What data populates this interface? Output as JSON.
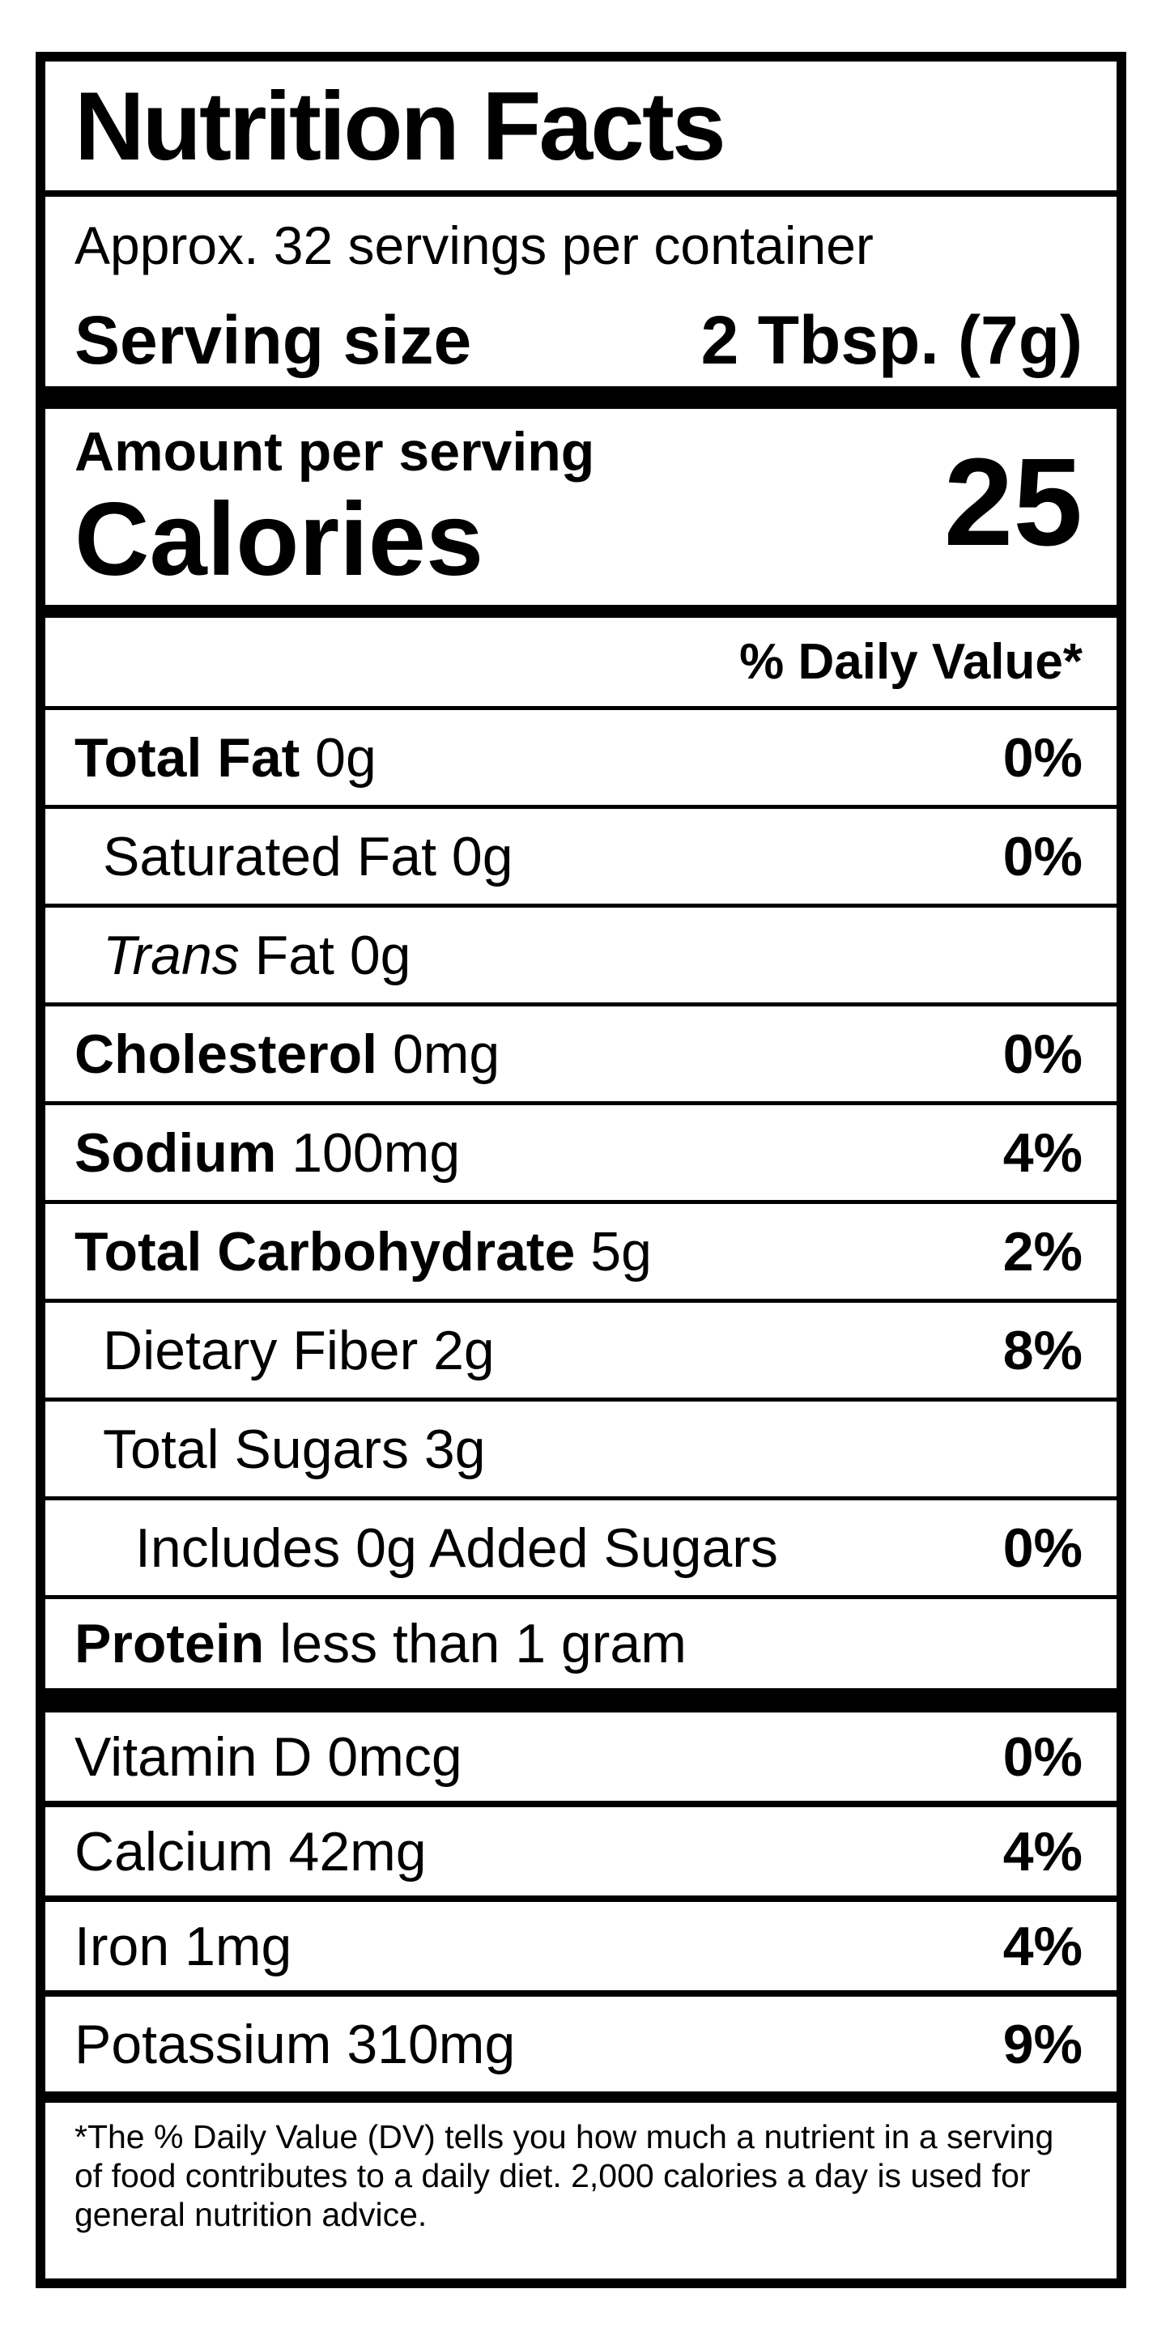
{
  "label": {
    "title": "Nutrition Facts",
    "servings_per_container": "Approx. 32 servings per container",
    "serving_size_label": "Serving size",
    "serving_size_value": "2 Tbsp. (7g)",
    "amount_per_serving_label": "Amount per serving",
    "calories_label": "Calories",
    "calories_value": "25",
    "daily_value_header": "% Daily Value*",
    "nutrients": [
      {
        "bold": "Total Fat",
        "text": " 0g",
        "percent": "0%"
      },
      {
        "text": "Saturated Fat 0g",
        "percent": "0%"
      },
      {
        "italic": "Trans",
        "text": " Fat 0g"
      },
      {
        "bold": "Cholesterol",
        "text": " 0mg",
        "percent": "0%"
      },
      {
        "bold": "Sodium",
        "text": " 100mg",
        "percent": "4%"
      },
      {
        "bold": "Total Carbohydrate",
        "text": " 5g",
        "percent": "2%"
      },
      {
        "text": "Dietary Fiber 2g",
        "percent": "8%"
      },
      {
        "text": "Total Sugars 3g"
      },
      {
        "text": "Includes 0g Added Sugars",
        "percent": "0%"
      },
      {
        "bold": "Protein",
        "text": " less than 1 gram"
      }
    ],
    "vitamins": [
      {
        "text": "Vitamin D 0mcg",
        "percent": "0%"
      },
      {
        "text": "Calcium 42mg",
        "percent": "4%"
      },
      {
        "text": "Iron 1mg",
        "percent": "4%"
      },
      {
        "text": "Potassium 310mg",
        "percent": "9%"
      }
    ],
    "footnote": "*The % Daily Value (DV) tells you how much a nutrient in a serving of food contributes to a daily diet. 2,000 calories a day is used for general nutrition advice."
  },
  "colors": {
    "text": "#000000",
    "background": "#ffffff"
  }
}
